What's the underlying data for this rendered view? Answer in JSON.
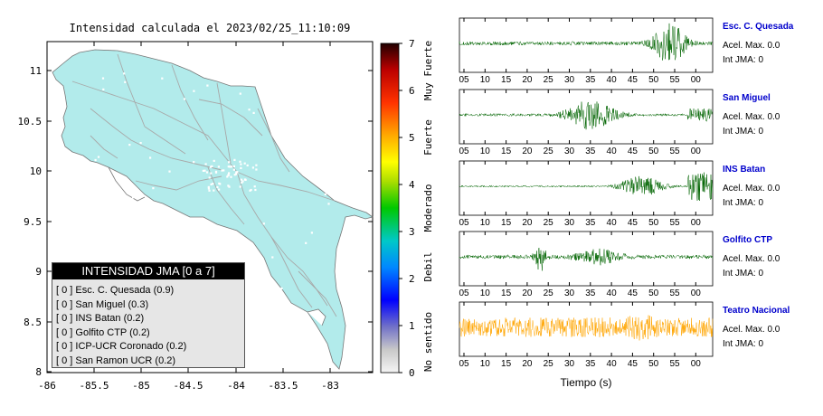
{
  "map": {
    "title": "Intensidad calculada el 2023/02/25_11:10:09",
    "y_ticks": [
      "11",
      "10.5",
      "10",
      "9.5",
      "9",
      "8.5",
      "8"
    ],
    "x_ticks": [
      "-86",
      "-85.5",
      "-85",
      "-84.5",
      "-84",
      "-83.5",
      "-83"
    ],
    "land_color": "#b2ebeb",
    "road_color": "#a8a8a8",
    "station_color": "#ffffff"
  },
  "colorbar": {
    "ticks": [
      "7",
      "6",
      "5",
      "4",
      "3",
      "2",
      "1",
      "0"
    ],
    "category_labels": [
      "Muy Fuerte",
      "Fuerte",
      "Moderado",
      "Debil",
      "No sentido"
    ]
  },
  "legend": {
    "title": "INTENSIDAD JMA [0 a 7]",
    "rows": [
      "[ 0 ]  Esc. C. Quesada (0.9)",
      "[ 0 ]  San Miguel (0.3)",
      "[ 0 ]  INS Batan (0.2)",
      "[ 0 ]  Golfito CTP (0.2)",
      "[ 0 ]  ICP-UCR Coronado (0.2)",
      "[ 0 ]  San Ramon UCR (0.2)"
    ]
  },
  "waveforms": {
    "x_ticks": [
      "05",
      "10",
      "15",
      "20",
      "25",
      "30",
      "35",
      "40",
      "45",
      "50",
      "55",
      "00"
    ],
    "x_label": "Tiempo (s)",
    "stations": [
      {
        "name": "Esc. C. Quesada",
        "acel": "Acel. Max. 0.0",
        "int": "Int JMA: 0",
        "color": "#006400"
      },
      {
        "name": "San Miguel",
        "acel": "Acel. Max. 0.0",
        "int": "Int JMA: 0",
        "color": "#006400"
      },
      {
        "name": "INS Batan",
        "acel": "Acel. Max. 0.0",
        "int": "Int JMA: 0",
        "color": "#006400"
      },
      {
        "name": "Golfito CTP",
        "acel": "Acel. Max. 0.0",
        "int": "Int JMA: 0",
        "color": "#006400"
      },
      {
        "name": "Teatro Nacional",
        "acel": "Acel. Max. 0.0",
        "int": "Int JMA: 0",
        "color": "#ffa500"
      }
    ]
  }
}
